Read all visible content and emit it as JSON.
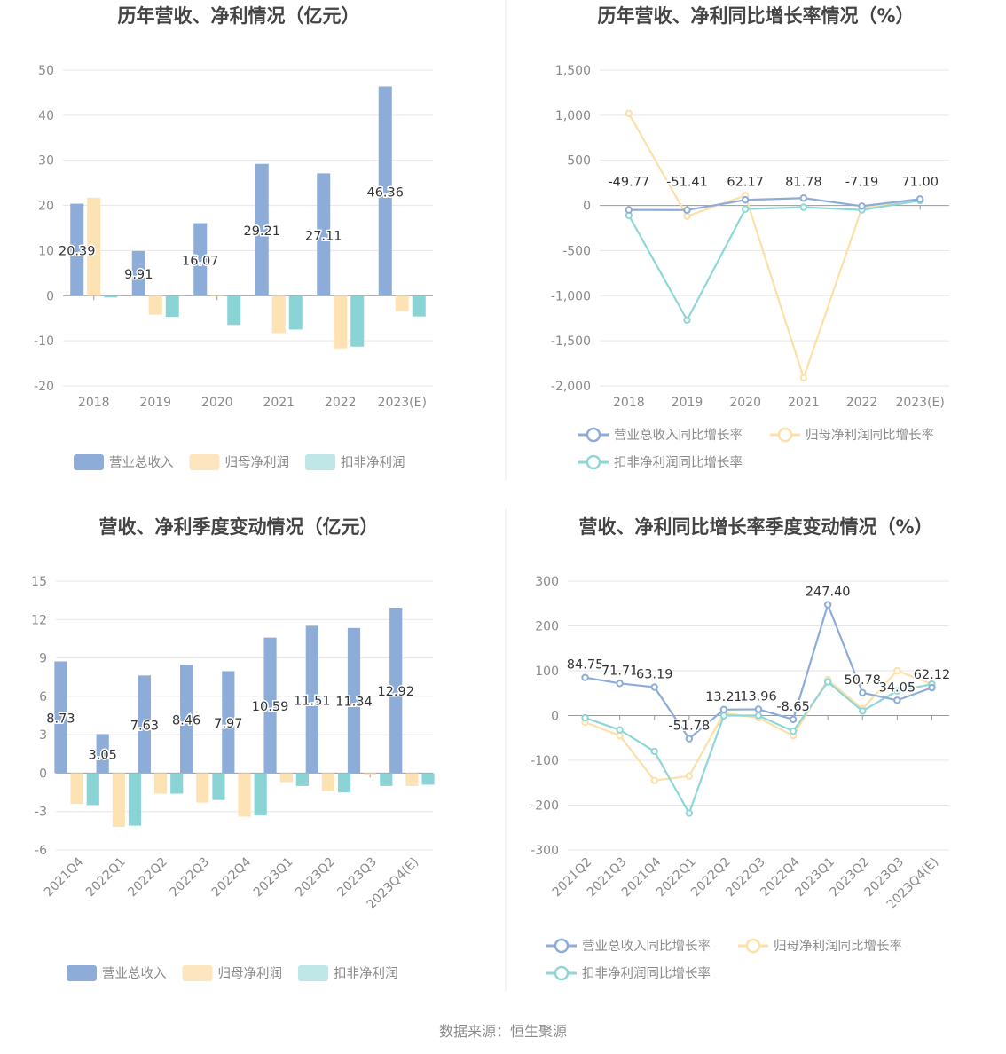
{
  "colors": {
    "revenue": "#8eacd8",
    "net_profit": "#fde2b4",
    "deducted": "#8ad4d5",
    "rev_line": "#8eacd8",
    "np_line": "#fce0a8",
    "ded_line": "#8fd7d7"
  },
  "source": "数据来源：恒生聚源",
  "chart_data": [
    {
      "type": "bar",
      "title": "历年营收、净利情况（亿元）",
      "categories": [
        "2018",
        "2019",
        "2020",
        "2021",
        "2022",
        "2023(E)"
      ],
      "ylim": [
        -20,
        50
      ],
      "yticks": [
        50,
        40,
        30,
        20,
        10,
        0,
        -10,
        -20
      ],
      "series": [
        {
          "name": "营业总收入",
          "values": [
            20.39,
            9.91,
            16.07,
            29.21,
            27.11,
            46.36
          ],
          "labels": [
            "20.39",
            "9.91",
            "16.07",
            "29.21",
            "27.11",
            "46.36"
          ]
        },
        {
          "name": "归母净利润",
          "values": [
            21.7,
            -4.2,
            0.2,
            -8.3,
            -11.7,
            -3.4
          ]
        },
        {
          "name": "扣非净利润",
          "values": [
            -0.4,
            -4.7,
            -6.5,
            -7.5,
            -11.3,
            -4.6
          ]
        }
      ]
    },
    {
      "type": "line",
      "title": "历年营收、净利同比增长率情况（%）",
      "categories": [
        "2018",
        "2019",
        "2020",
        "2021",
        "2022",
        "2023(E)"
      ],
      "ylim": [
        -2000,
        1500
      ],
      "yticks": [
        "1,500",
        "1,000",
        "500",
        "0",
        "-500",
        "-1,000",
        "-1,500",
        "-2,000"
      ],
      "ytick_values": [
        1500,
        1000,
        500,
        0,
        -500,
        -1000,
        -1500,
        -2000
      ],
      "series": [
        {
          "name": "营业总收入同比增长率",
          "values": [
            -49.77,
            -51.41,
            62.17,
            81.78,
            -7.19,
            71.0
          ],
          "labels": [
            "-49.77",
            "-51.41",
            "62.17",
            "81.78",
            "-7.19",
            "71.00"
          ]
        },
        {
          "name": "归母净利润同比增长率",
          "values": [
            1020,
            -120,
            110,
            -1910,
            -30,
            60
          ]
        },
        {
          "name": "扣非净利润同比增长率",
          "values": [
            -110,
            -1270,
            -40,
            -20,
            -50,
            55
          ]
        }
      ]
    },
    {
      "type": "bar",
      "title": "营收、净利季度变动情况（亿元）",
      "categories": [
        "2021Q4",
        "2022Q1",
        "2022Q2",
        "2022Q3",
        "2022Q4",
        "2023Q1",
        "2023Q2",
        "2023Q3",
        "2023Q4(E)"
      ],
      "ylim": [
        -6,
        15
      ],
      "yticks": [
        15,
        12,
        9,
        6,
        3,
        0,
        -3,
        -6
      ],
      "series": [
        {
          "name": "营业总收入",
          "values": [
            8.73,
            3.05,
            7.63,
            8.46,
            7.97,
            10.59,
            11.51,
            11.34,
            12.92
          ],
          "labels": [
            "8.73",
            "3.05",
            "7.63",
            "8.46",
            "7.97",
            "10.59",
            "11.51",
            "11.34",
            "12.92"
          ]
        },
        {
          "name": "归母净利润",
          "values": [
            -2.4,
            -4.2,
            -1.6,
            -2.3,
            -3.4,
            -0.7,
            -1.4,
            -0.1,
            -1.0
          ]
        },
        {
          "name": "扣非净利润",
          "values": [
            -2.5,
            -4.1,
            -1.6,
            -2.1,
            -3.3,
            -1.0,
            -1.5,
            -1.0,
            -0.9
          ]
        }
      ]
    },
    {
      "type": "line",
      "title": "营收、净利同比增长率季度变动情况（%）",
      "categories": [
        "2021Q2",
        "2021Q3",
        "2021Q4",
        "2022Q1",
        "2022Q2",
        "2022Q3",
        "2022Q4",
        "2023Q1",
        "2023Q2",
        "2023Q3",
        "2023Q4(E)"
      ],
      "ylim": [
        -300,
        300
      ],
      "yticks": [
        300,
        200,
        100,
        0,
        -100,
        -200,
        -300
      ],
      "series": [
        {
          "name": "营业总收入同比增长率",
          "values": [
            84.75,
            71.71,
            63.19,
            -51.78,
            13.21,
            13.96,
            -8.65,
            247.4,
            50.78,
            34.05,
            62.12
          ],
          "labels": [
            "84.75",
            "71.71",
            "63.19",
            "-51.78",
            "13.21",
            "13.96",
            "-8.65",
            "247.40",
            "50.78",
            "34.05",
            "62.12"
          ]
        },
        {
          "name": "归母净利润同比增长率",
          "values": [
            -15,
            -45,
            -145,
            -135,
            5,
            -5,
            -45,
            80,
            15,
            100,
            70
          ]
        },
        {
          "name": "扣非净利润同比增长率",
          "values": [
            -5,
            -32,
            -80,
            -218,
            0,
            0,
            -35,
            75,
            10,
            55,
            70
          ]
        }
      ]
    }
  ]
}
